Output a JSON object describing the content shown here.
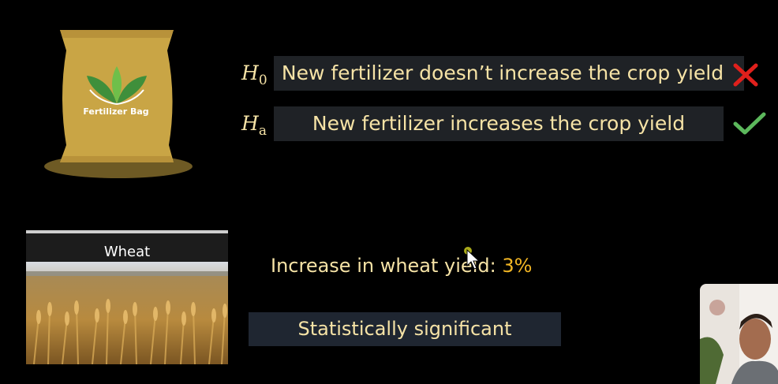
{
  "bag": {
    "label": "Fertilizer Bag"
  },
  "hypotheses": {
    "null": {
      "symbol": "H",
      "subscript": "0",
      "text": "New fertilizer doesn’t increase the crop yield",
      "status_icon": "cross-icon",
      "status_color": "#e0201c"
    },
    "alternative": {
      "symbol": "H",
      "subscript": "a",
      "text": "New fertilizer increases the crop yield",
      "status_icon": "check-icon",
      "status_color": "#5cb85c"
    }
  },
  "wheat": {
    "title": "Wheat"
  },
  "result": {
    "label": "Increase in wheat yield: ",
    "value": "3%"
  },
  "conclusion": {
    "text": "Statistically significant"
  },
  "colors": {
    "background": "#000000",
    "text": "#f6e3a6",
    "accent": "#f2b624",
    "bag": "#c9a545"
  }
}
